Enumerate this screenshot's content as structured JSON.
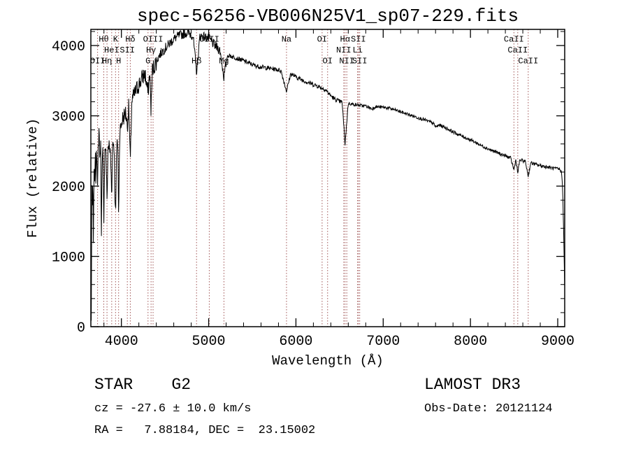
{
  "title": "spec-56256-VB006N25V1_sp07-229.fits",
  "chart_data": {
    "type": "line",
    "title": "spec-56256-VB006N25V1_sp07-229.fits",
    "xlabel": "Wavelength (Å)",
    "ylabel": "Flux (relative)",
    "xlim": [
      3650,
      9080
    ],
    "ylim": [
      0,
      4230
    ],
    "x_ticks": [
      4000,
      5000,
      6000,
      7000,
      8000,
      9000
    ],
    "y_ticks": [
      0,
      1000,
      2000,
      3000,
      4000
    ],
    "grid": false,
    "legend": "none",
    "trace_color": "#000000",
    "line_marker_color": "#a05555",
    "line_label_color": "#6b3030",
    "spectral_lines": [
      {
        "label": "OII",
        "wavelength": 3727,
        "row": 3
      },
      {
        "label": "Hθ",
        "wavelength": 3798,
        "row": 1
      },
      {
        "label": "Hη",
        "wavelength": 3835,
        "row": 3
      },
      {
        "label": "HeI",
        "wavelength": 3889,
        "row": 2
      },
      {
        "label": "K",
        "wavelength": 3933,
        "row": 1
      },
      {
        "label": "H",
        "wavelength": 3968,
        "row": 3
      },
      {
        "label": "SII",
        "wavelength": 4068,
        "row": 2
      },
      {
        "label": "Hδ",
        "wavelength": 4102,
        "row": 1
      },
      {
        "label": "G",
        "wavelength": 4305,
        "row": 3
      },
      {
        "label": "Hγ",
        "wavelength": 4340,
        "row": 2
      },
      {
        "label": "OIII",
        "wavelength": 4363,
        "row": 1
      },
      {
        "label": "Hβ",
        "wavelength": 4861,
        "row": 3
      },
      {
        "label": "OIII",
        "wavelength": 5007,
        "row": 1
      },
      {
        "label": "Mg",
        "wavelength": 5175,
        "row": 3
      },
      {
        "label": "Na",
        "wavelength": 5892,
        "row": 1
      },
      {
        "label": "OI",
        "wavelength": 6300,
        "row": 1
      },
      {
        "label": "OI",
        "wavelength": 6363,
        "row": 3
      },
      {
        "label": "NII",
        "wavelength": 6548,
        "row": 2
      },
      {
        "label": "Hα",
        "wavelength": 6563,
        "row": 1
      },
      {
        "label": "NII",
        "wavelength": 6583,
        "row": 3
      },
      {
        "label": "Li",
        "wavelength": 6707,
        "row": 2
      },
      {
        "label": "SII",
        "wavelength": 6716,
        "row": 1
      },
      {
        "label": "SII",
        "wavelength": 6731,
        "row": 3
      },
      {
        "label": "CaII",
        "wavelength": 8498,
        "row": 1
      },
      {
        "label": "CaII",
        "wavelength": 8542,
        "row": 2
      },
      {
        "label": "CaII",
        "wavelength": 8662,
        "row": 3
      }
    ],
    "noise": {
      "seed": 7,
      "bands": [
        [
          4400,
          130
        ],
        [
          5200,
          70
        ],
        [
          6600,
          32
        ],
        [
          10000,
          24
        ]
      ]
    },
    "spectrum": [
      [
        3655,
        60
      ],
      [
        3662,
        2100
      ],
      [
        3668,
        1500
      ],
      [
        3673,
        2250
      ],
      [
        3680,
        900
      ],
      [
        3686,
        2400
      ],
      [
        3693,
        2000
      ],
      [
        3700,
        2500
      ],
      [
        3708,
        2100
      ],
      [
        3716,
        2700
      ],
      [
        3727,
        1900
      ],
      [
        3736,
        2600
      ],
      [
        3745,
        2850
      ],
      [
        3754,
        2300
      ],
      [
        3762,
        2750
      ],
      [
        3770,
        1300
      ],
      [
        3778,
        2200
      ],
      [
        3788,
        2500
      ],
      [
        3798,
        1500
      ],
      [
        3808,
        2450
      ],
      [
        3820,
        2600
      ],
      [
        3835,
        1800
      ],
      [
        3848,
        2600
      ],
      [
        3862,
        2550
      ],
      [
        3875,
        2450
      ],
      [
        3889,
        1900
      ],
      [
        3900,
        2650
      ],
      [
        3915,
        2600
      ],
      [
        3933,
        1500
      ],
      [
        3948,
        2700
      ],
      [
        3958,
        2600
      ],
      [
        3968,
        1600
      ],
      [
        3980,
        2750
      ],
      [
        3995,
        2850
      ],
      [
        4010,
        2950
      ],
      [
        4030,
        3000
      ],
      [
        4050,
        3050
      ],
      [
        4068,
        2850
      ],
      [
        4085,
        3150
      ],
      [
        4102,
        2300
      ],
      [
        4118,
        3200
      ],
      [
        4140,
        3280
      ],
      [
        4165,
        3350
      ],
      [
        4190,
        3420
      ],
      [
        4215,
        3480
      ],
      [
        4240,
        3540
      ],
      [
        4270,
        3600
      ],
      [
        4305,
        3320
      ],
      [
        4325,
        3620
      ],
      [
        4340,
        3080
      ],
      [
        4355,
        3650
      ],
      [
        4380,
        3720
      ],
      [
        4410,
        3800
      ],
      [
        4440,
        3870
      ],
      [
        4470,
        3920
      ],
      [
        4500,
        3960
      ],
      [
        4530,
        4000
      ],
      [
        4560,
        4040
      ],
      [
        4590,
        4080
      ],
      [
        4620,
        4110
      ],
      [
        4660,
        4140
      ],
      [
        4700,
        4160
      ],
      [
        4740,
        4180
      ],
      [
        4780,
        4170
      ],
      [
        4820,
        4140
      ],
      [
        4861,
        3620
      ],
      [
        4900,
        4140
      ],
      [
        4940,
        4130
      ],
      [
        4980,
        4110
      ],
      [
        5010,
        4090
      ],
      [
        5050,
        4030
      ],
      [
        5090,
        3980
      ],
      [
        5130,
        3930
      ],
      [
        5175,
        3550
      ],
      [
        5215,
        3860
      ],
      [
        5255,
        3850
      ],
      [
        5300,
        3830
      ],
      [
        5345,
        3810
      ],
      [
        5390,
        3790
      ],
      [
        5435,
        3765
      ],
      [
        5480,
        3740
      ],
      [
        5530,
        3715
      ],
      [
        5580,
        3700
      ],
      [
        5630,
        3690
      ],
      [
        5680,
        3680
      ],
      [
        5730,
        3670
      ],
      [
        5780,
        3660
      ],
      [
        5830,
        3640
      ],
      [
        5892,
        3350
      ],
      [
        5940,
        3600
      ],
      [
        5990,
        3560
      ],
      [
        6040,
        3530
      ],
      [
        6090,
        3500
      ],
      [
        6140,
        3475
      ],
      [
        6190,
        3450
      ],
      [
        6240,
        3430
      ],
      [
        6290,
        3400
      ],
      [
        6340,
        3370
      ],
      [
        6390,
        3300
      ],
      [
        6440,
        3240
      ],
      [
        6490,
        3210
      ],
      [
        6530,
        3190
      ],
      [
        6563,
        2600
      ],
      [
        6600,
        3180
      ],
      [
        6650,
        3165
      ],
      [
        6700,
        3155
      ],
      [
        6750,
        3145
      ],
      [
        6800,
        3140
      ],
      [
        6870,
        3100
      ],
      [
        6910,
        3130
      ],
      [
        6960,
        3125
      ],
      [
        7010,
        3120
      ],
      [
        7060,
        3110
      ],
      [
        7120,
        3090
      ],
      [
        7180,
        3065
      ],
      [
        7240,
        3040
      ],
      [
        7300,
        3015
      ],
      [
        7360,
        2990
      ],
      [
        7420,
        2965
      ],
      [
        7480,
        2940
      ],
      [
        7540,
        2910
      ],
      [
        7570,
        2895
      ],
      [
        7605,
        2840
      ],
      [
        7640,
        2870
      ],
      [
        7700,
        2840
      ],
      [
        7760,
        2800
      ],
      [
        7820,
        2760
      ],
      [
        7880,
        2725
      ],
      [
        7940,
        2690
      ],
      [
        8000,
        2660
      ],
      [
        8060,
        2620
      ],
      [
        8120,
        2580
      ],
      [
        8180,
        2545
      ],
      [
        8240,
        2510
      ],
      [
        8300,
        2480
      ],
      [
        8360,
        2450
      ],
      [
        8420,
        2420
      ],
      [
        8460,
        2400
      ],
      [
        8498,
        2230
      ],
      [
        8520,
        2380
      ],
      [
        8542,
        2180
      ],
      [
        8565,
        2370
      ],
      [
        8600,
        2360
      ],
      [
        8630,
        2350
      ],
      [
        8662,
        2140
      ],
      [
        8690,
        2330
      ],
      [
        8730,
        2315
      ],
      [
        8770,
        2300
      ],
      [
        8810,
        2290
      ],
      [
        8850,
        2280
      ],
      [
        8890,
        2270
      ],
      [
        8930,
        2260
      ],
      [
        8970,
        2250
      ],
      [
        9000,
        2245
      ],
      [
        9025,
        2235
      ],
      [
        9045,
        2190
      ],
      [
        9058,
        1900
      ],
      [
        9070,
        1200
      ],
      [
        9080,
        500
      ]
    ]
  },
  "footer": {
    "object_type": "STAR    G2",
    "survey": "LAMOST DR3",
    "cz": "cz = -27.6 ± 10.0 km/s",
    "obs_date": "Obs-Date: 20121124",
    "coords": "RA =   7.88184, DEC =  23.15002"
  }
}
